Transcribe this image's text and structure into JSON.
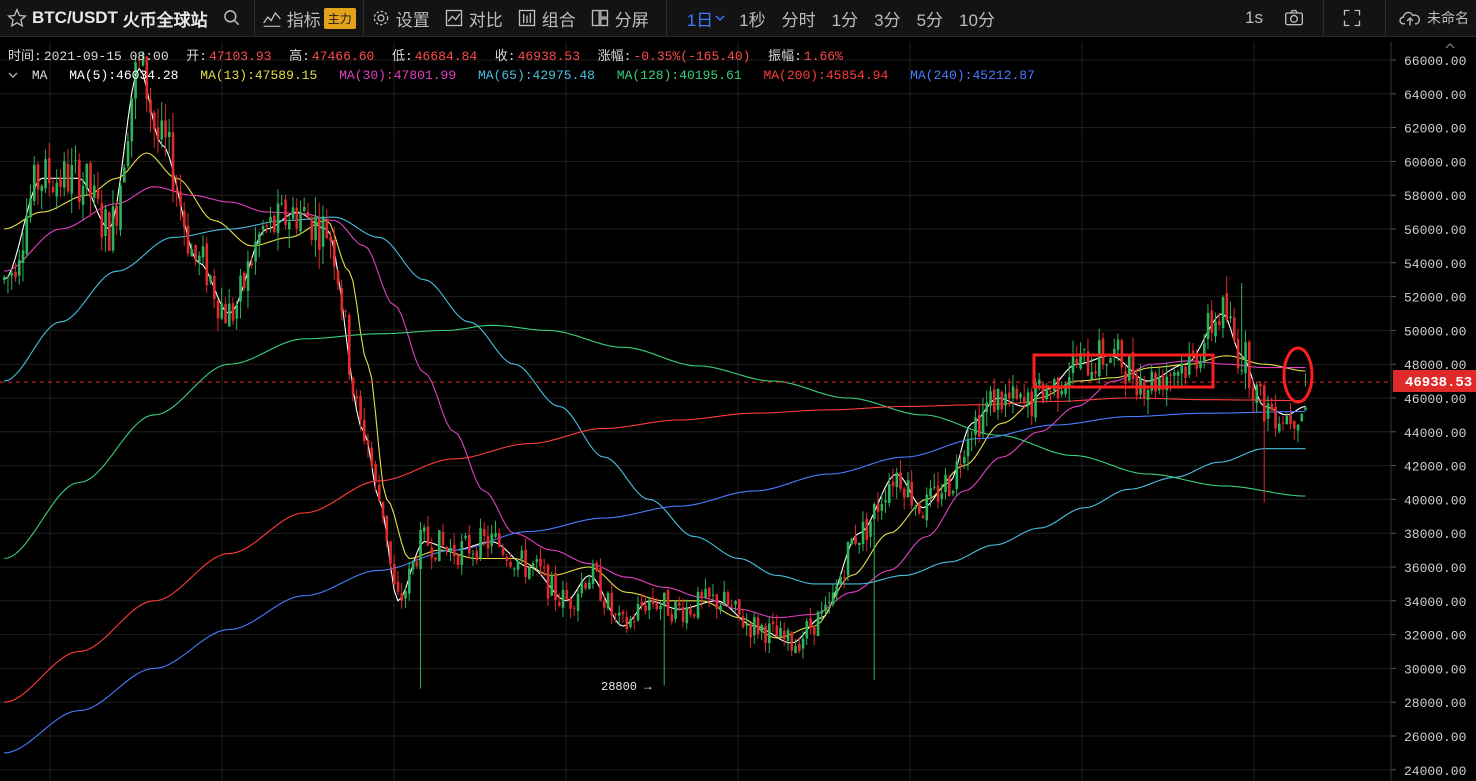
{
  "toolbar": {
    "symbol": "BTC/USDT",
    "exchange": "火币全球站",
    "indicators": "指标",
    "indicators_badge": "主力",
    "settings": "设置",
    "compare": "对比",
    "combo": "组合",
    "split": "分屏",
    "intervals": [
      "1日",
      "1秒",
      "分时",
      "1分",
      "3分",
      "5分",
      "10分"
    ],
    "active_interval": "1日",
    "right_interval": "1s",
    "save_name": "未命名"
  },
  "info": {
    "time_label": "时间:",
    "time": "2021-09-15 08:00",
    "open_label": "开:",
    "open": "47103.93",
    "high_label": "高:",
    "high": "47466.60",
    "low_label": "低:",
    "low": "46684.84",
    "close_label": "收:",
    "close": "46938.53",
    "change_label": "涨幅:",
    "change": "-0.35%(-165.40)",
    "amp_label": "振幅:",
    "amp": "1.66%"
  },
  "ma_legend": {
    "title": "MA",
    "items": [
      {
        "label": "MA(5):46034.28",
        "color": "#ffffff"
      },
      {
        "label": "MA(13):47589.15",
        "color": "#e6dc4a"
      },
      {
        "label": "MA(30):47801.99",
        "color": "#e040c0"
      },
      {
        "label": "MA(65):42975.48",
        "color": "#46c0e0"
      },
      {
        "label": "MA(128):40195.61",
        "color": "#3ad07a"
      },
      {
        "label": "MA(200):45854.94",
        "color": "#ff3b3b"
      },
      {
        "label": "MA(240):45212.87",
        "color": "#4a7bff"
      }
    ]
  },
  "chart_data": {
    "type": "candlestick",
    "ylim": [
      24000,
      67000
    ],
    "y_ticks": [
      "66000.00",
      "64000.00",
      "62000.00",
      "60000.00",
      "58000.00",
      "56000.00",
      "54000.00",
      "52000.00",
      "50000.00",
      "48000.00",
      "46000.00",
      "44000.00",
      "42000.00",
      "40000.00",
      "38000.00",
      "36000.00",
      "34000.00",
      "32000.00",
      "30000.00",
      "28000.00",
      "26000.00",
      "24000.00"
    ],
    "last_price": "46938.53",
    "min_annotation": "28800 →",
    "colors": {
      "up": "#2db35a",
      "down": "#e02a2a",
      "grid": "#1f1f1f",
      "last": "#e02a2a"
    },
    "ma_anchors": {
      "ma5": [
        [
          0,
          53000
        ],
        [
          10,
          59000
        ],
        [
          20,
          59000
        ],
        [
          28,
          56000
        ],
        [
          36,
          65500
        ],
        [
          42,
          61000
        ],
        [
          52,
          54000
        ],
        [
          60,
          51000
        ],
        [
          70,
          56000
        ],
        [
          78,
          57000
        ],
        [
          86,
          56000
        ],
        [
          96,
          44000
        ],
        [
          100,
          40000
        ],
        [
          105,
          34000
        ],
        [
          112,
          37500
        ],
        [
          120,
          37000
        ],
        [
          130,
          37500
        ],
        [
          140,
          36000
        ],
        [
          150,
          34000
        ],
        [
          156,
          35500
        ],
        [
          165,
          32500
        ],
        [
          172,
          34000
        ],
        [
          180,
          33500
        ],
        [
          190,
          34000
        ],
        [
          200,
          32500
        ],
        [
          210,
          31500
        ],
        [
          218,
          33000
        ],
        [
          228,
          38000
        ],
        [
          238,
          41500
        ],
        [
          245,
          39500
        ],
        [
          252,
          41000
        ],
        [
          258,
          44500
        ],
        [
          265,
          46000
        ],
        [
          272,
          45500
        ],
        [
          278,
          46500
        ],
        [
          286,
          48000
        ],
        [
          295,
          48500
        ],
        [
          305,
          47000
        ],
        [
          315,
          48000
        ],
        [
          325,
          51000
        ],
        [
          330,
          48500
        ],
        [
          336,
          45500
        ],
        [
          342,
          45000
        ],
        [
          347,
          45500
        ]
      ],
      "ma13": [
        [
          0,
          56000
        ],
        [
          10,
          57000
        ],
        [
          22,
          58000
        ],
        [
          30,
          59000
        ],
        [
          38,
          60500
        ],
        [
          46,
          59000
        ],
        [
          56,
          56500
        ],
        [
          66,
          55000
        ],
        [
          76,
          55500
        ],
        [
          86,
          56500
        ],
        [
          92,
          53500
        ],
        [
          97,
          48000
        ],
        [
          102,
          40000
        ],
        [
          108,
          36500
        ],
        [
          116,
          37000
        ],
        [
          126,
          36500
        ],
        [
          136,
          36500
        ],
        [
          146,
          35500
        ],
        [
          156,
          36000
        ],
        [
          166,
          34500
        ],
        [
          176,
          34000
        ],
        [
          186,
          34000
        ],
        [
          196,
          33000
        ],
        [
          206,
          31800
        ],
        [
          216,
          32500
        ],
        [
          226,
          35500
        ],
        [
          236,
          38000
        ],
        [
          246,
          40000
        ],
        [
          256,
          42000
        ],
        [
          266,
          44500
        ],
        [
          276,
          46000
        ],
        [
          286,
          47000
        ],
        [
          296,
          47200
        ],
        [
          306,
          47800
        ],
        [
          316,
          48000
        ],
        [
          326,
          48500
        ],
        [
          336,
          48000
        ],
        [
          347,
          47600
        ]
      ],
      "ma30": [
        [
          0,
          53500
        ],
        [
          15,
          56000
        ],
        [
          30,
          57500
        ],
        [
          40,
          58500
        ],
        [
          50,
          58000
        ],
        [
          60,
          57600
        ],
        [
          70,
          57000
        ],
        [
          80,
          56900
        ],
        [
          88,
          56500
        ],
        [
          96,
          55000
        ],
        [
          104,
          51500
        ],
        [
          112,
          47500
        ],
        [
          120,
          44000
        ],
        [
          128,
          40500
        ],
        [
          136,
          38000
        ],
        [
          146,
          37000
        ],
        [
          156,
          36200
        ],
        [
          166,
          35400
        ],
        [
          176,
          34800
        ],
        [
          186,
          34200
        ],
        [
          196,
          33500
        ],
        [
          206,
          33000
        ],
        [
          216,
          33200
        ],
        [
          226,
          34500
        ],
        [
          236,
          35800
        ],
        [
          246,
          37800
        ],
        [
          256,
          40500
        ],
        [
          266,
          42500
        ],
        [
          276,
          44000
        ],
        [
          286,
          45500
        ],
        [
          296,
          47000
        ],
        [
          306,
          48000
        ],
        [
          316,
          48200
        ],
        [
          326,
          48000
        ],
        [
          336,
          47800
        ],
        [
          347,
          47800
        ]
      ],
      "ma65": [
        [
          0,
          47000
        ],
        [
          15,
          50500
        ],
        [
          30,
          53500
        ],
        [
          45,
          55500
        ],
        [
          60,
          56000
        ],
        [
          75,
          56500
        ],
        [
          88,
          56700
        ],
        [
          100,
          55500
        ],
        [
          112,
          53000
        ],
        [
          124,
          50500
        ],
        [
          136,
          48000
        ],
        [
          148,
          45500
        ],
        [
          160,
          42500
        ],
        [
          172,
          40000
        ],
        [
          184,
          37800
        ],
        [
          196,
          36500
        ],
        [
          206,
          35500
        ],
        [
          216,
          35000
        ],
        [
          228,
          35000
        ],
        [
          240,
          35500
        ],
        [
          252,
          36300
        ],
        [
          264,
          37300
        ],
        [
          276,
          38300
        ],
        [
          288,
          39500
        ],
        [
          300,
          40600
        ],
        [
          312,
          41300
        ],
        [
          324,
          42200
        ],
        [
          336,
          43000
        ],
        [
          347,
          43000
        ]
      ],
      "ma128": [
        [
          0,
          36500
        ],
        [
          20,
          41000
        ],
        [
          40,
          45000
        ],
        [
          60,
          48000
        ],
        [
          80,
          49500
        ],
        [
          100,
          49800
        ],
        [
          118,
          50000
        ],
        [
          130,
          50300
        ],
        [
          145,
          50000
        ],
        [
          165,
          49000
        ],
        [
          185,
          47900
        ],
        [
          205,
          47000
        ],
        [
          225,
          46000
        ],
        [
          245,
          45000
        ],
        [
          265,
          43800
        ],
        [
          285,
          42600
        ],
        [
          305,
          41500
        ],
        [
          325,
          40800
        ],
        [
          347,
          40200
        ]
      ],
      "ma200": [
        [
          0,
          28000
        ],
        [
          20,
          31000
        ],
        [
          40,
          34000
        ],
        [
          60,
          36800
        ],
        [
          80,
          39200
        ],
        [
          100,
          41100
        ],
        [
          120,
          42400
        ],
        [
          140,
          43300
        ],
        [
          160,
          44200
        ],
        [
          180,
          44700
        ],
        [
          200,
          45100
        ],
        [
          220,
          45300
        ],
        [
          240,
          45500
        ],
        [
          260,
          45600
        ],
        [
          280,
          45800
        ],
        [
          300,
          46000
        ],
        [
          320,
          45900
        ],
        [
          347,
          45850
        ]
      ],
      "ma240": [
        [
          0,
          25000
        ],
        [
          20,
          27500
        ],
        [
          40,
          30000
        ],
        [
          60,
          32300
        ],
        [
          80,
          34300
        ],
        [
          100,
          35800
        ],
        [
          120,
          37000
        ],
        [
          140,
          38100
        ],
        [
          160,
          38900
        ],
        [
          180,
          39600
        ],
        [
          200,
          40500
        ],
        [
          220,
          41500
        ],
        [
          240,
          42500
        ],
        [
          260,
          43600
        ],
        [
          280,
          44400
        ],
        [
          300,
          44900
        ],
        [
          320,
          45100
        ],
        [
          347,
          45200
        ]
      ]
    }
  }
}
